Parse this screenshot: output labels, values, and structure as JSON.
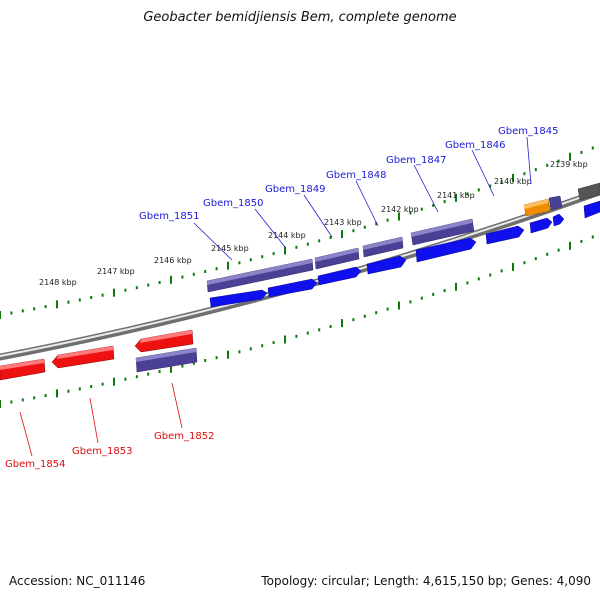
{
  "title": "Geobacter bemidjiensis Bem, complete genome",
  "footer": {
    "accession": "Accession: NC_011146",
    "summary": "Topology: circular; Length: 4,615,150 bp; Genes: 4,090"
  },
  "colors": {
    "plus_gene": "#1010ee",
    "plus_cds": "#4a4196",
    "minus_gene": "#ee1111",
    "minus_cds": "#4a4196",
    "rna": "#f08c00",
    "backbone": "#7a7a7a",
    "tick": "#0a7a0a",
    "plus_label": "#1a1ad8",
    "minus_label": "#dd0b0b"
  },
  "ruler_labels": [
    {
      "text": "2148 kbp"
    },
    {
      "text": "2147 kbp"
    },
    {
      "text": "2146 kbp"
    },
    {
      "text": "2145 kbp"
    },
    {
      "text": "2144 kbp"
    },
    {
      "text": "2143 kbp"
    },
    {
      "text": "2142 kbp"
    },
    {
      "text": "2141 kbp"
    },
    {
      "text": "2140 kbp"
    },
    {
      "text": "2139 kbp"
    }
  ],
  "plus_genes": [
    {
      "text": "Gbem_1851"
    },
    {
      "text": "Gbem_1850"
    },
    {
      "text": "Gbem_1849"
    },
    {
      "text": "Gbem_1848"
    },
    {
      "text": "Gbem_1847"
    },
    {
      "text": "Gbem_1846"
    },
    {
      "text": "Gbem_1845"
    }
  ],
  "minus_genes": [
    {
      "text": "Gbem_1854"
    },
    {
      "text": "Gbem_1853"
    },
    {
      "text": "Gbem_1852"
    }
  ]
}
